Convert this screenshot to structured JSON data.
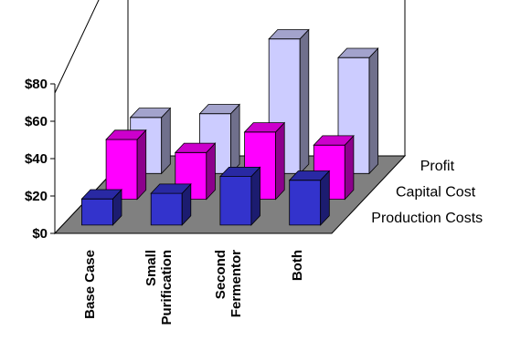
{
  "chart_data": {
    "type": "bar",
    "subtype": "3d-clustered-depth",
    "categories": [
      "Base Case",
      "Small Purification",
      "Second Fermentor",
      "Both"
    ],
    "category_lines": [
      [
        "Base Case"
      ],
      [
        "Small",
        "Purification"
      ],
      [
        "Second",
        "Fermentor"
      ],
      [
        "Both"
      ]
    ],
    "series": [
      {
        "name": "Production Costs",
        "values": [
          14,
          17,
          26,
          24
        ],
        "color": "#3333cc"
      },
      {
        "name": "Capital Cost",
        "values": [
          32,
          25,
          36,
          29
        ],
        "color": "#ff00ff"
      },
      {
        "name": "Profit",
        "values": [
          30,
          32,
          72,
          62
        ],
        "color": "#ccccff"
      }
    ],
    "y_ticks": [
      "$0",
      "$20",
      "$40",
      "$60",
      "$80"
    ],
    "ylim": [
      0,
      100
    ],
    "grid": false,
    "floor_color": "#808080",
    "wall_color": "#ffffff"
  }
}
